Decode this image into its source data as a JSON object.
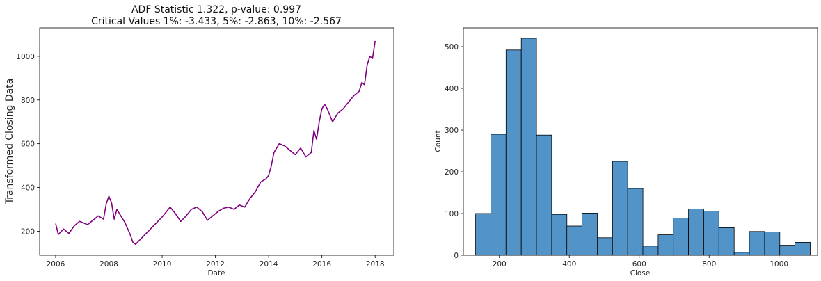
{
  "chart_data": [
    {
      "type": "line",
      "title": "ADF Statistic 1.322, p-value: 0.997",
      "subtitle": "Critical Values 1%: -3.433, 5%: -2.863, 10%: -2.567",
      "xlabel": "Date",
      "ylabel": "Transformed Closing Data",
      "xlim": [
        2005.4,
        2018.7
      ],
      "ylim": [
        90,
        1130
      ],
      "xticks": [
        "2006",
        "2008",
        "2010",
        "2012",
        "2014",
        "2016",
        "2018"
      ],
      "xtick_values": [
        2006,
        2008,
        2010,
        2012,
        2014,
        2016,
        2018
      ],
      "yticks": [
        200,
        400,
        600,
        800,
        1000
      ],
      "color": "#800080",
      "grid": false,
      "series": [
        {
          "x": [
            2006.0,
            2006.1,
            2006.3,
            2006.5,
            2006.7,
            2006.9,
            2007.0,
            2007.2,
            2007.4,
            2007.6,
            2007.8,
            2007.9,
            2008.0,
            2008.1,
            2008.2,
            2008.3,
            2008.4,
            2008.6,
            2008.8,
            2008.9,
            2009.0,
            2009.2,
            2009.4,
            2009.6,
            2009.8,
            2010.0,
            2010.1,
            2010.3,
            2010.5,
            2010.7,
            2010.9,
            2011.1,
            2011.3,
            2011.5,
            2011.7,
            2011.9,
            2012.1,
            2012.3,
            2012.5,
            2012.7,
            2012.9,
            2013.1,
            2013.3,
            2013.5,
            2013.7,
            2013.9,
            2014.0,
            2014.1,
            2014.2,
            2014.4,
            2014.6,
            2014.8,
            2015.0,
            2015.2,
            2015.4,
            2015.6,
            2015.7,
            2015.8,
            2015.9,
            2016.0,
            2016.1,
            2016.2,
            2016.4,
            2016.6,
            2016.8,
            2017.0,
            2017.2,
            2017.4,
            2017.5,
            2017.6,
            2017.7,
            2017.8,
            2017.9,
            2018.0
          ],
          "values": [
            235,
            185,
            210,
            190,
            225,
            245,
            240,
            230,
            250,
            270,
            255,
            325,
            360,
            330,
            255,
            300,
            280,
            240,
            185,
            150,
            140,
            165,
            190,
            215,
            240,
            265,
            280,
            310,
            280,
            245,
            270,
            300,
            310,
            290,
            250,
            270,
            290,
            305,
            310,
            300,
            320,
            310,
            350,
            380,
            425,
            440,
            455,
            500,
            560,
            600,
            590,
            570,
            550,
            580,
            540,
            560,
            660,
            620,
            700,
            760,
            780,
            760,
            700,
            740,
            760,
            790,
            820,
            840,
            880,
            870,
            960,
            1000,
            990,
            1070
          ]
        }
      ]
    },
    {
      "type": "bar",
      "title": "",
      "xlabel": "Close",
      "ylabel": "Count",
      "xlim": [
        97,
        1110
      ],
      "ylim": [
        0,
        545
      ],
      "xticks": [
        200,
        400,
        600,
        800,
        1000
      ],
      "yticks": [
        0,
        100,
        200,
        300,
        400,
        500
      ],
      "color": "#5294c8",
      "bin_start": 132,
      "bin_width": 43.5,
      "values": [
        100,
        290,
        492,
        520,
        288,
        98,
        70,
        101,
        42,
        225,
        160,
        22,
        49,
        89,
        111,
        106,
        66,
        7,
        57,
        56,
        24,
        31
      ]
    }
  ]
}
